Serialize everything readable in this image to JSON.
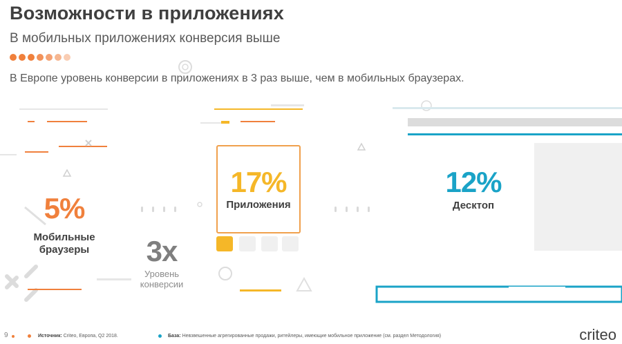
{
  "header": {
    "title": "Возможности в приложениях",
    "subtitle": "В мобильных приложениях конверсия выше",
    "lead": "В Европе уровень конверсии в приложениях в 3 раз выше, чем в мобильных браузерах."
  },
  "dots_colors": [
    "#f0803c",
    "#f0803c",
    "#f0803c",
    "#f2925a",
    "#f4a274",
    "#f6b690",
    "#f9cdb3"
  ],
  "stats": {
    "mobile": {
      "value": "5%",
      "label_line1": "Мобильные",
      "label_line2": "браузеры",
      "color": "#f0803c"
    },
    "apps": {
      "value": "17%",
      "label": "Приложения",
      "color": "#f5b728"
    },
    "desktop": {
      "value": "12%",
      "label": "Десктоп",
      "color": "#1aa3c7"
    },
    "multiplier": {
      "value": "3x",
      "label_line1": "Уровень",
      "label_line2": "конверсии",
      "color": "#7f7f7f"
    }
  },
  "footer": {
    "page_number": "9",
    "source_label": "Источник:",
    "source_text": "Criteo, Европа, Q2 2018.",
    "base_label": "База:",
    "base_text": "Невзвешенные агрегированные продажи, ритейлеры, имеющие мобильное приложение (см. раздел Методология)",
    "logo": "criteo"
  },
  "colors": {
    "orange": "#f0803c",
    "yellow": "#f5b728",
    "teal": "#1aa3c7",
    "text": "#404040"
  }
}
